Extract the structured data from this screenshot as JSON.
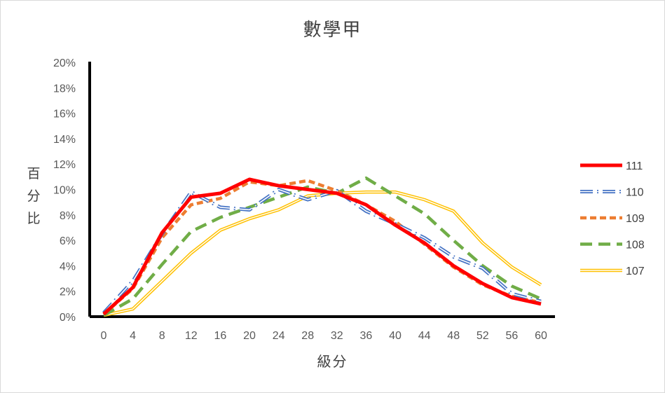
{
  "chart_data": {
    "type": "line",
    "title": "數學甲",
    "xlabel": "級分",
    "ylabel": "百分比",
    "categories": [
      "0",
      "4",
      "8",
      "12",
      "16",
      "20",
      "24",
      "28",
      "32",
      "36",
      "40",
      "44",
      "48",
      "52",
      "56",
      "60"
    ],
    "ylim": [
      0,
      20
    ],
    "yticks": [
      "0%",
      "2%",
      "4%",
      "6%",
      "8%",
      "10%",
      "12%",
      "14%",
      "16%",
      "18%",
      "20%"
    ],
    "grid": false,
    "legend_position": "right",
    "series": [
      {
        "name": "111",
        "color": "#ff0000",
        "style": "solid-thick",
        "values": [
          0.2,
          2.3,
          6.6,
          9.4,
          9.7,
          10.8,
          10.3,
          10.0,
          9.7,
          8.8,
          7.2,
          5.8,
          4.0,
          2.6,
          1.5,
          1.0
        ]
      },
      {
        "name": "110",
        "color": "#4472c4",
        "style": "double-dashdot",
        "values": [
          0.3,
          2.8,
          6.5,
          9.8,
          8.6,
          8.4,
          10.0,
          9.2,
          9.9,
          8.3,
          7.3,
          6.2,
          4.7,
          3.8,
          1.8,
          1.2
        ]
      },
      {
        "name": "109",
        "color": "#ed7d31",
        "style": "dash",
        "values": [
          0.2,
          2.2,
          6.2,
          8.8,
          9.3,
          10.6,
          10.3,
          10.7,
          9.9,
          8.8,
          7.5,
          5.7,
          3.9,
          2.5,
          1.6,
          1.1
        ]
      },
      {
        "name": "108",
        "color": "#70ad47",
        "style": "long-dash",
        "values": [
          0.1,
          1.4,
          4.1,
          6.7,
          7.8,
          8.6,
          9.4,
          10.2,
          9.7,
          10.9,
          9.5,
          8.1,
          6.0,
          4.0,
          2.4,
          1.4
        ]
      },
      {
        "name": "107",
        "color": "#ffc000",
        "style": "double",
        "values": [
          0.1,
          0.6,
          2.8,
          5.0,
          6.8,
          7.7,
          8.4,
          9.5,
          9.7,
          9.8,
          9.8,
          9.2,
          8.3,
          5.8,
          3.9,
          2.5
        ]
      }
    ]
  }
}
